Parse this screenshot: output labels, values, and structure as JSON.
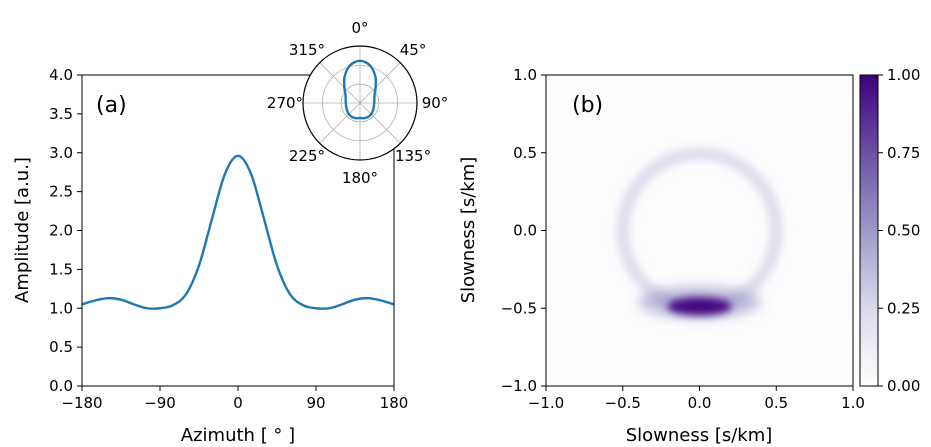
{
  "chart_data": [
    {
      "type": "line",
      "panel_label": "(a)",
      "xlabel": "Azimuth [ ° ]",
      "ylabel": "Amplitude [a.u.]",
      "xlim": [
        -180,
        180
      ],
      "ylim": [
        0.0,
        4.0
      ],
      "xticks": [
        "−180",
        "−90",
        "0",
        "90",
        "180"
      ],
      "yticks": [
        "0.0",
        "0.5",
        "1.0",
        "1.5",
        "2.0",
        "2.5",
        "3.0",
        "3.5",
        "4.0"
      ],
      "grid": false,
      "series": [
        {
          "color": "#1f77b4",
          "x": [
            -180,
            -165,
            -150,
            -135,
            -120,
            -105,
            -90,
            -75,
            -60,
            -45,
            -30,
            -15,
            0,
            15,
            30,
            45,
            60,
            75,
            90,
            105,
            120,
            135,
            150,
            165,
            180
          ],
          "y": [
            1.05,
            1.1,
            1.13,
            1.11,
            1.05,
            1.0,
            1.0,
            1.04,
            1.18,
            1.55,
            2.15,
            2.73,
            2.96,
            2.73,
            2.15,
            1.55,
            1.18,
            1.04,
            1.0,
            1.0,
            1.05,
            1.11,
            1.13,
            1.1,
            1.05
          ]
        }
      ]
    },
    {
      "type": "polar",
      "direction_labels": [
        "0°",
        "45°",
        "90°",
        "135°",
        "180°",
        "225°",
        "270°",
        "315°"
      ],
      "description_of_values": "same amplitude-vs-azimuth curve as panel (a), plotted in polar form",
      "grid": true
    },
    {
      "type": "heatmap",
      "panel_label": "(b)",
      "xlabel": "Slowness [s/km]",
      "ylabel": "Slowness [s/km]",
      "xlim": [
        -1.0,
        1.0
      ],
      "ylim": [
        -1.0,
        1.0
      ],
      "xticks": [
        "−1.0",
        "−0.5",
        "0.0",
        "0.5",
        "1.0"
      ],
      "yticks": [
        "−1.0",
        "−0.5",
        "0.0",
        "0.5",
        "1.0"
      ],
      "ring_radius_s_per_km": 0.5,
      "peak": {
        "x": 0.0,
        "y": -0.5,
        "value": 1.0
      },
      "colorbar": {
        "ticks": [
          "0.00",
          "0.25",
          "0.50",
          "0.75",
          "1.00"
        ],
        "range": [
          0.0,
          1.0
        ],
        "color_low": "#ffffff",
        "color_high": "#3f007d"
      }
    }
  ],
  "colors": {
    "line": "#1f77b4",
    "polar_line": "#1f77b4",
    "cmap_high": "#3f007d",
    "grid": "#b0b0b0"
  }
}
